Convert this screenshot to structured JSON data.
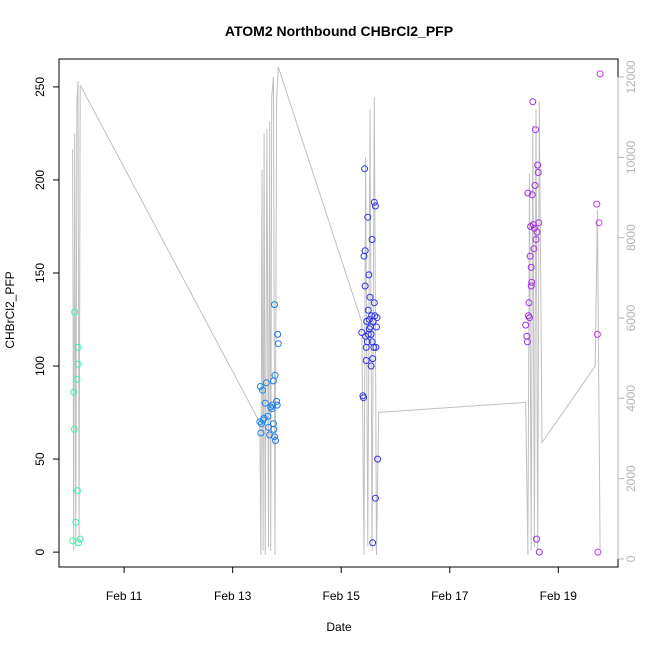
{
  "chart_data": {
    "type": "scatter",
    "title": "ATOM2 Northbound CHBrCl2_PFP",
    "xlabel": "Date",
    "ylabel": "CHBrCl2_PFP",
    "x_ticks": [
      "Feb 11",
      "Feb 13",
      "Feb 15",
      "Feb 17",
      "Feb 19"
    ],
    "x_tick_values": [
      11,
      13,
      15,
      17,
      19
    ],
    "xlim": [
      9.8,
      20.1
    ],
    "ylim": [
      -8,
      265
    ],
    "y_ticks": [
      0,
      50,
      100,
      150,
      200,
      250
    ],
    "y2lim": [
      -200,
      12450
    ],
    "y2_ticks": [
      0,
      2000,
      4000,
      6000,
      8000,
      10000,
      12000
    ],
    "grid": false,
    "point_color_scale": [
      "#3ef5a6",
      "#20c4ea",
      "#1a3ae6",
      "#7a2ae0",
      "#cc33e6"
    ],
    "points": [
      {
        "x": 10.09,
        "y": 129
      },
      {
        "x": 10.07,
        "y": 86
      },
      {
        "x": 10.08,
        "y": 66
      },
      {
        "x": 10.05,
        "y": 6
      },
      {
        "x": 10.11,
        "y": 16
      },
      {
        "x": 10.13,
        "y": 93
      },
      {
        "x": 10.15,
        "y": 110
      },
      {
        "x": 10.15,
        "y": 101
      },
      {
        "x": 10.14,
        "y": 33
      },
      {
        "x": 10.16,
        "y": 5
      },
      {
        "x": 10.19,
        "y": 7
      },
      {
        "x": 13.51,
        "y": 89
      },
      {
        "x": 13.55,
        "y": 87
      },
      {
        "x": 13.5,
        "y": 70
      },
      {
        "x": 13.53,
        "y": 69
      },
      {
        "x": 13.56,
        "y": 71
      },
      {
        "x": 13.58,
        "y": 72
      },
      {
        "x": 13.52,
        "y": 64
      },
      {
        "x": 13.62,
        "y": 91
      },
      {
        "x": 13.6,
        "y": 80
      },
      {
        "x": 13.65,
        "y": 73
      },
      {
        "x": 13.66,
        "y": 67
      },
      {
        "x": 13.68,
        "y": 63
      },
      {
        "x": 13.7,
        "y": 78
      },
      {
        "x": 13.72,
        "y": 77
      },
      {
        "x": 13.73,
        "y": 79
      },
      {
        "x": 13.75,
        "y": 92
      },
      {
        "x": 13.77,
        "y": 133
      },
      {
        "x": 13.75,
        "y": 69
      },
      {
        "x": 13.78,
        "y": 95
      },
      {
        "x": 13.79,
        "y": 60
      },
      {
        "x": 13.77,
        "y": 62
      },
      {
        "x": 13.76,
        "y": 66
      },
      {
        "x": 13.81,
        "y": 81
      },
      {
        "x": 13.82,
        "y": 79
      },
      {
        "x": 13.83,
        "y": 117
      },
      {
        "x": 13.84,
        "y": 112
      },
      {
        "x": 15.38,
        "y": 118
      },
      {
        "x": 15.4,
        "y": 84
      },
      {
        "x": 15.41,
        "y": 83
      },
      {
        "x": 15.42,
        "y": 159
      },
      {
        "x": 15.43,
        "y": 206
      },
      {
        "x": 15.44,
        "y": 162
      },
      {
        "x": 15.44,
        "y": 143
      },
      {
        "x": 15.45,
        "y": 116
      },
      {
        "x": 15.46,
        "y": 103
      },
      {
        "x": 15.47,
        "y": 124
      },
      {
        "x": 15.48,
        "y": 113
      },
      {
        "x": 15.49,
        "y": 180
      },
      {
        "x": 15.5,
        "y": 130
      },
      {
        "x": 15.51,
        "y": 149
      },
      {
        "x": 15.52,
        "y": 125
      },
      {
        "x": 15.53,
        "y": 137
      },
      {
        "x": 15.54,
        "y": 121
      },
      {
        "x": 15.55,
        "y": 117
      },
      {
        "x": 15.55,
        "y": 100
      },
      {
        "x": 15.56,
        "y": 127
      },
      {
        "x": 15.57,
        "y": 168
      },
      {
        "x": 15.58,
        "y": 104
      },
      {
        "x": 15.59,
        "y": 124
      },
      {
        "x": 15.6,
        "y": 110
      },
      {
        "x": 15.61,
        "y": 188
      },
      {
        "x": 15.61,
        "y": 134
      },
      {
        "x": 15.62,
        "y": 127
      },
      {
        "x": 15.63,
        "y": 186
      },
      {
        "x": 15.63,
        "y": 29
      },
      {
        "x": 15.64,
        "y": 110
      },
      {
        "x": 15.65,
        "y": 121
      },
      {
        "x": 15.66,
        "y": 126
      },
      {
        "x": 15.67,
        "y": 50
      },
      {
        "x": 15.58,
        "y": 5
      },
      {
        "x": 15.5,
        "y": 117
      },
      {
        "x": 15.46,
        "y": 110
      },
      {
        "x": 15.52,
        "y": 120
      },
      {
        "x": 15.57,
        "y": 113
      },
      {
        "x": 18.4,
        "y": 122
      },
      {
        "x": 18.42,
        "y": 116
      },
      {
        "x": 18.43,
        "y": 113
      },
      {
        "x": 18.44,
        "y": 193
      },
      {
        "x": 18.45,
        "y": 127
      },
      {
        "x": 18.46,
        "y": 134
      },
      {
        "x": 18.47,
        "y": 126
      },
      {
        "x": 18.48,
        "y": 159
      },
      {
        "x": 18.49,
        "y": 175
      },
      {
        "x": 18.5,
        "y": 153
      },
      {
        "x": 18.5,
        "y": 143
      },
      {
        "x": 18.51,
        "y": 145
      },
      {
        "x": 18.52,
        "y": 192
      },
      {
        "x": 18.53,
        "y": 242
      },
      {
        "x": 18.54,
        "y": 176
      },
      {
        "x": 18.55,
        "y": 163
      },
      {
        "x": 18.56,
        "y": 174
      },
      {
        "x": 18.57,
        "y": 197
      },
      {
        "x": 18.58,
        "y": 227
      },
      {
        "x": 18.59,
        "y": 168
      },
      {
        "x": 18.6,
        "y": 7
      },
      {
        "x": 18.61,
        "y": 172
      },
      {
        "x": 18.62,
        "y": 208
      },
      {
        "x": 18.63,
        "y": 204
      },
      {
        "x": 18.64,
        "y": 177
      },
      {
        "x": 18.65,
        "y": 0
      },
      {
        "x": 19.71,
        "y": 187
      },
      {
        "x": 19.72,
        "y": 117
      },
      {
        "x": 19.73,
        "y": 0
      },
      {
        "x": 19.75,
        "y": 177
      },
      {
        "x": 19.77,
        "y": 257
      }
    ],
    "line_series": {
      "axis": "right",
      "color": "#c0c0c0",
      "x": [
        10.05,
        10.07,
        10.09,
        10.11,
        10.13,
        10.15,
        10.17,
        10.19,
        13.5,
        13.52,
        13.54,
        13.56,
        13.58,
        13.6,
        13.63,
        13.66,
        13.68,
        13.7,
        13.72,
        13.75,
        13.78,
        13.81,
        13.84,
        15.38,
        15.42,
        15.45,
        15.49,
        15.53,
        15.57,
        15.61,
        15.65,
        15.69,
        18.4,
        18.44,
        18.47,
        18.5,
        18.53,
        18.56,
        18.59,
        18.62,
        18.65,
        18.7,
        19.68,
        19.72,
        19.77
      ],
      "y": [
        10200,
        200,
        10600,
        300,
        11400,
        11900,
        400,
        11800,
        3400,
        100,
        9700,
        200,
        10600,
        100,
        10700,
        300,
        10900,
        200,
        11500,
        12000,
        100,
        11400,
        12250,
        5900,
        100,
        10000,
        300,
        11200,
        200,
        11500,
        100,
        3650,
        3900,
        100,
        9600,
        200,
        10800,
        300,
        11200,
        200,
        11400,
        2900,
        4800,
        8700,
        250
      ]
    }
  }
}
